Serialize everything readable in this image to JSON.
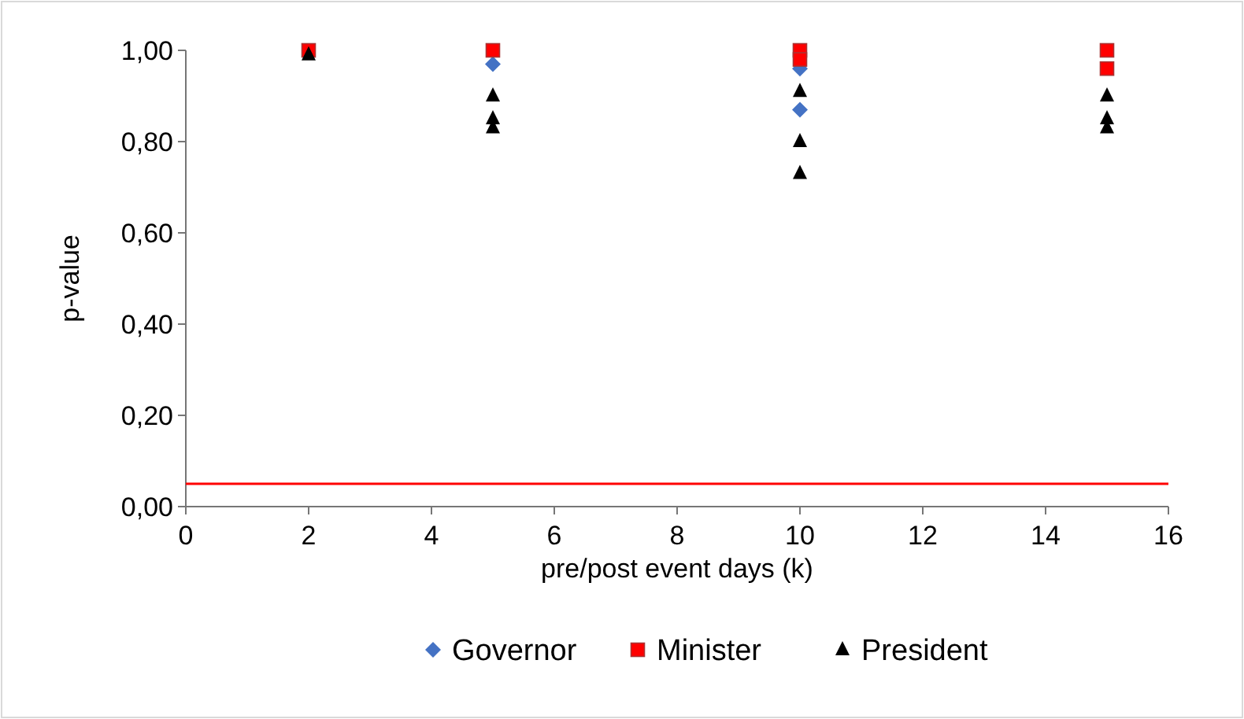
{
  "chart_data": {
    "type": "scatter",
    "xlabel": "pre/post event days (k)",
    "ylabel": "p-value",
    "xlim": [
      0,
      16
    ],
    "xticks": [
      0,
      2,
      4,
      6,
      8,
      10,
      12,
      14,
      16
    ],
    "ylim": [
      0,
      1
    ],
    "yticks": [
      {
        "value": 0,
        "label": "0,00"
      },
      {
        "value": 0.2,
        "label": "0,20"
      },
      {
        "value": 0.4,
        "label": "0,40"
      },
      {
        "value": 0.6,
        "label": "0,60"
      },
      {
        "value": 0.8,
        "label": "0,80"
      },
      {
        "value": 1,
        "label": "1,00"
      }
    ],
    "grid": false,
    "legend": "bottom",
    "series": [
      {
        "name": "Governor",
        "color": "#4472c4",
        "marker": "diamond",
        "x": [
          5,
          10,
          10
        ],
        "values": [
          0.97,
          0.96,
          0.87
        ]
      },
      {
        "name": "Minister",
        "color": "#ff0000",
        "marker": "square",
        "x": [
          2,
          5,
          10,
          10,
          15,
          15
        ],
        "values": [
          1.0,
          1.0,
          1.0,
          0.98,
          1.0,
          0.96
        ]
      },
      {
        "name": "President",
        "color": "#000000",
        "marker": "triangle",
        "x": [
          2,
          5,
          5,
          5,
          10,
          10,
          10,
          15,
          15,
          15
        ],
        "values": [
          0.99,
          0.9,
          0.85,
          0.83,
          0.91,
          0.8,
          0.73,
          0.9,
          0.85,
          0.83
        ]
      }
    ],
    "ref_lines": [
      {
        "axis": "y",
        "value": 0.05,
        "color": "#ff0000"
      }
    ]
  }
}
